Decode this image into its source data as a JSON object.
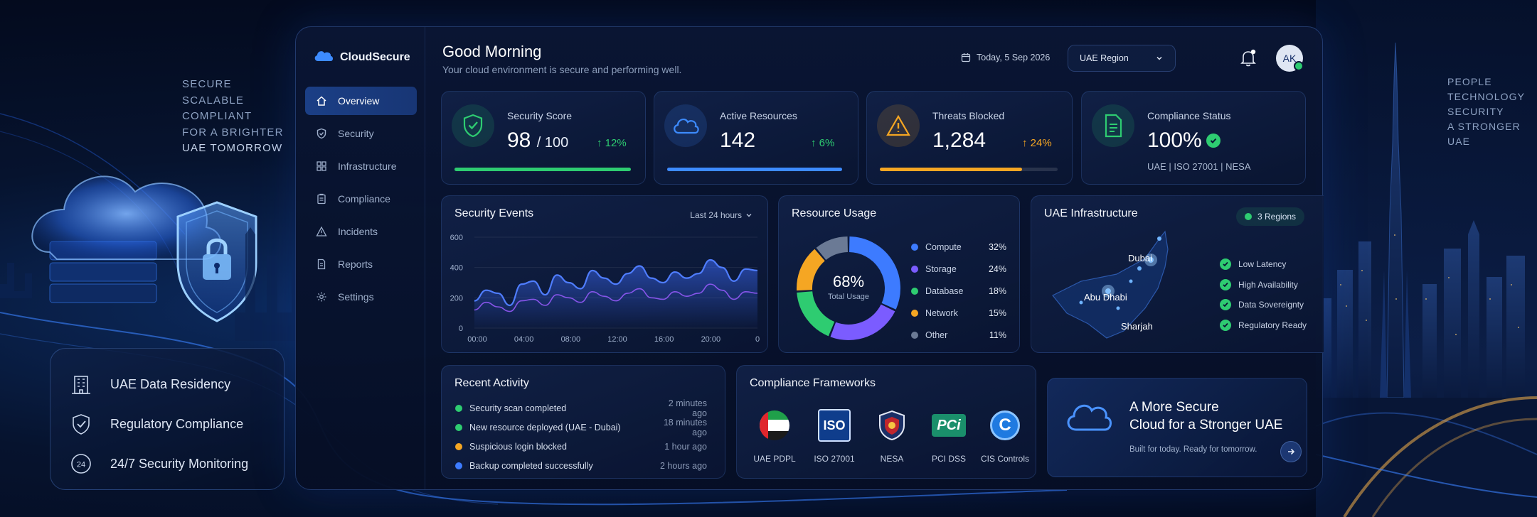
{
  "hero": {
    "taglines_left": [
      "SECURE",
      "SCALABLE",
      "COMPLIANT",
      "FOR A BRIGHTER",
      "UAE TOMORROW"
    ],
    "taglines_right": [
      "PEOPLE",
      "TECHNOLOGY",
      "SECURITY",
      "A STRONGER",
      "UAE"
    ],
    "features": [
      {
        "icon": "building-icon",
        "label": "UAE Data Residency"
      },
      {
        "icon": "shield-check-icon",
        "label": "Regulatory Compliance"
      },
      {
        "icon": "clock-24-icon",
        "label": "24/7 Security Monitoring"
      }
    ]
  },
  "brand": {
    "name": "CloudSecure",
    "icon": "cloud-icon"
  },
  "nav": [
    {
      "label": "Overview",
      "icon": "home-icon",
      "active": true
    },
    {
      "label": "Security",
      "icon": "shield-icon"
    },
    {
      "label": "Infrastructure",
      "icon": "nodes-icon"
    },
    {
      "label": "Compliance",
      "icon": "clipboard-icon"
    },
    {
      "label": "Incidents",
      "icon": "alert-icon"
    },
    {
      "label": "Reports",
      "icon": "document-icon"
    },
    {
      "label": "Settings",
      "icon": "gear-icon"
    }
  ],
  "header": {
    "greeting": "Good Morning",
    "subtitle": "Your cloud environment is secure and performing well.",
    "date": "Today, 5 Sep 2026",
    "region": "UAE Region",
    "avatar_initials": "AK"
  },
  "kpis": [
    {
      "label": "Security Score",
      "value": "98",
      "suffix": "/ 100",
      "change": "12%",
      "progress": 1.0,
      "color": "#2ecc71"
    },
    {
      "label": "Active Resources",
      "value": "142",
      "change": "6%",
      "progress": 1.0,
      "color": "#3d8bff"
    },
    {
      "label": "Threats Blocked",
      "value": "1,284",
      "change": "24%",
      "progress": 0.8,
      "color": "#f5a623"
    },
    {
      "label": "Compliance Status",
      "value": "100%",
      "sub": "UAE | ISO 27001 | NESA",
      "color": "#2ecc71"
    }
  ],
  "security_events": {
    "title": "Security Events",
    "range": "Last 24 hours"
  },
  "chart_data": {
    "type": "area",
    "title": "Security Events",
    "x": [
      "00:00",
      "01:00",
      "02:00",
      "03:00",
      "04:00",
      "05:00",
      "06:00",
      "07:00",
      "08:00",
      "09:00",
      "10:00",
      "11:00",
      "12:00",
      "13:00",
      "14:00",
      "15:00",
      "16:00",
      "17:00",
      "18:00",
      "19:00",
      "20:00",
      "21:00",
      "22:00",
      "23:00",
      "24:00"
    ],
    "x_ticks": [
      "00:00",
      "04:00",
      "08:00",
      "12:00",
      "16:00",
      "20:00",
      "0"
    ],
    "y_ticks": [
      0,
      200,
      400,
      600
    ],
    "ylim": [
      0,
      600
    ],
    "series": [
      {
        "values": [
          180,
          250,
          230,
          150,
          290,
          310,
          220,
          350,
          300,
          260,
          380,
          330,
          290,
          360,
          410,
          330,
          300,
          370,
          330,
          360,
          450,
          400,
          310,
          390,
          380
        ],
        "color": "#4f7dff"
      },
      {
        "values": [
          120,
          170,
          140,
          110,
          180,
          190,
          150,
          220,
          200,
          170,
          240,
          210,
          180,
          230,
          260,
          200,
          190,
          240,
          210,
          230,
          290,
          250,
          190,
          240,
          230
        ],
        "color": "#9a5cff"
      }
    ]
  },
  "resource_usage": {
    "title": "Resource Usage",
    "center_value": "68%",
    "center_label": "Total Usage",
    "items": [
      {
        "label": "Compute",
        "value": "32%",
        "pct": 32,
        "color": "#3d7bff"
      },
      {
        "label": "Storage",
        "value": "24%",
        "pct": 24,
        "color": "#7b5cff"
      },
      {
        "label": "Database",
        "value": "18%",
        "pct": 18,
        "color": "#2ecc71"
      },
      {
        "label": "Network",
        "value": "15%",
        "pct": 15,
        "color": "#f5a623"
      },
      {
        "label": "Other",
        "value": "11%",
        "pct": 11,
        "color": "#6b7a95"
      }
    ]
  },
  "infrastructure": {
    "title": "UAE Infrastructure",
    "badge": "3 Regions",
    "cities": [
      "Dubai",
      "Abu Dhabi",
      "Sharjah"
    ],
    "checks": [
      "Low Latency",
      "High Availability",
      "Data Sovereignty",
      "Regulatory Ready"
    ]
  },
  "activity": {
    "title": "Recent Activity",
    "items": [
      {
        "text": "Security scan completed",
        "time": "2 minutes ago",
        "color": "#2ecc71"
      },
      {
        "text": "New resource deployed (UAE - Dubai)",
        "time": "18 minutes ago",
        "color": "#2ecc71"
      },
      {
        "text": "Suspicious login blocked",
        "time": "1 hour ago",
        "color": "#f5a623"
      },
      {
        "text": "Backup completed successfully",
        "time": "2 hours ago",
        "color": "#3d7bff"
      }
    ]
  },
  "frameworks": {
    "title": "Compliance Frameworks",
    "items": [
      {
        "label": "UAE PDPL",
        "icon": "uae-flag-icon"
      },
      {
        "label": "ISO 27001",
        "icon": "iso-logo-icon",
        "logo_text": "ISO"
      },
      {
        "label": "NESA",
        "icon": "nesa-shield-icon"
      },
      {
        "label": "PCI DSS",
        "icon": "pci-logo-icon",
        "logo_text": "PCi"
      },
      {
        "label": "CIS Controls",
        "icon": "cis-logo-icon",
        "logo_text": "C"
      }
    ]
  },
  "promo": {
    "title_line1": "A More Secure",
    "title_line2": "Cloud for a Stronger UAE",
    "subtitle": "Built for today. Ready for tomorrow."
  }
}
